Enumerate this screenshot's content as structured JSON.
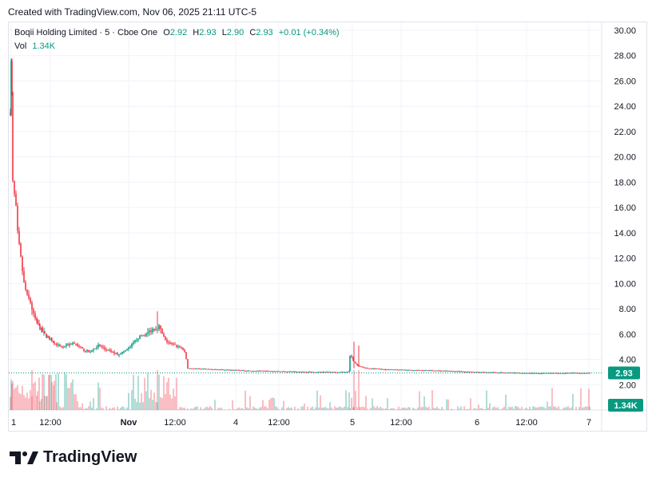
{
  "header": {
    "created_text": "Created with TradingView.com, Nov 06, 2025 21:11 UTC-5"
  },
  "legend": {
    "symbol": "Boqii Holding Limited · 5 · Cboe One",
    "open_label": "O",
    "open": "2.92",
    "high_label": "H",
    "high": "2.93",
    "low_label": "L",
    "low": "2.90",
    "close_label": "C",
    "close": "2.93",
    "change": "+0.01 (+0.34%)",
    "vol_label": "Vol",
    "vol": "1.34K"
  },
  "brand": {
    "name": "TradingView"
  },
  "colors": {
    "up": "#089981",
    "down": "#f23645",
    "grid": "#f0f3fa",
    "text": "#131722",
    "last_price": "#089981"
  },
  "chart_data": {
    "type": "candlestick",
    "title": "Boqii Holding Limited · 5 · Cboe One",
    "ylim": [
      0,
      30
    ],
    "y_ticks": [
      "30.00",
      "28.00",
      "26.00",
      "24.00",
      "22.00",
      "20.00",
      "18.00",
      "16.00",
      "14.00",
      "12.00",
      "10.00",
      "8.00",
      "6.00",
      "4.00",
      "2.00"
    ],
    "x_ticks": [
      "1",
      "12:00",
      "Nov",
      "12:00",
      "4",
      "12:00",
      "5",
      "12:00",
      "6",
      "12:00",
      "7"
    ],
    "last_price_label": "2.93",
    "last_price": 2.93,
    "volume_label": "1.34K",
    "grid": true,
    "segments": [
      {
        "name": "day-1",
        "points": [
          [
            0,
            23.5
          ],
          [
            1,
            27.5
          ],
          [
            2,
            25
          ],
          [
            3,
            18
          ],
          [
            5,
            17
          ],
          [
            7,
            16
          ],
          [
            9,
            14
          ],
          [
            11,
            13
          ],
          [
            13,
            12
          ],
          [
            15,
            11
          ],
          [
            17,
            10
          ],
          [
            19,
            9.5
          ],
          [
            21,
            9
          ],
          [
            23,
            8.8
          ],
          [
            25,
            8.5
          ],
          [
            27,
            8
          ],
          [
            29,
            7.5
          ],
          [
            31,
            7.2
          ],
          [
            34,
            6.8
          ],
          [
            37,
            6.5
          ],
          [
            40,
            6.2
          ],
          [
            43,
            6
          ],
          [
            46,
            5.8
          ],
          [
            49,
            5.6
          ],
          [
            52,
            5.5
          ],
          [
            55,
            5.3
          ],
          [
            58,
            5.2
          ],
          [
            62,
            5
          ],
          [
            66,
            5
          ],
          [
            70,
            5.1
          ],
          [
            74,
            5.2
          ],
          [
            78,
            5.3
          ],
          [
            82,
            5.2
          ],
          [
            86,
            5
          ],
          [
            90,
            4.8
          ],
          [
            94,
            4.7
          ],
          [
            98,
            4.6
          ],
          [
            102,
            4.7
          ],
          [
            106,
            4.9
          ],
          [
            110,
            5.1
          ],
          [
            114,
            5
          ],
          [
            118,
            4.8
          ],
          [
            122,
            4.7
          ],
          [
            126,
            4.6
          ],
          [
            130,
            4.5
          ],
          [
            134,
            4.4
          ],
          [
            138,
            4.5
          ],
          [
            142,
            4.6
          ],
          [
            146,
            4.8
          ],
          [
            150,
            5
          ],
          [
            154,
            5.3
          ],
          [
            158,
            5.6
          ],
          [
            162,
            5.8
          ],
          [
            166,
            5.9
          ],
          [
            170,
            6
          ],
          [
            174,
            6.2
          ],
          [
            178,
            6.4
          ],
          [
            182,
            6.5
          ],
          [
            186,
            6.6
          ],
          [
            190,
            6
          ],
          [
            194,
            5.5
          ],
          [
            198,
            5.3
          ],
          [
            202,
            5.2
          ],
          [
            206,
            5.1
          ],
          [
            210,
            5
          ],
          [
            214,
            4.9
          ],
          [
            218,
            4.5
          ],
          [
            222,
            3.5
          ]
        ]
      },
      {
        "name": "day-2",
        "points": [
          [
            222,
            3.3
          ],
          [
            260,
            3.2
          ],
          [
            300,
            3.1
          ],
          [
            340,
            3.05
          ],
          [
            380,
            3.0
          ],
          [
            420,
            3.0
          ],
          [
            425,
            3.1
          ]
        ]
      },
      {
        "name": "day-3",
        "points": [
          [
            425,
            4.3
          ],
          [
            430,
            3.8
          ],
          [
            435,
            3.5
          ],
          [
            445,
            3.3
          ],
          [
            470,
            3.2
          ],
          [
            500,
            3.15
          ],
          [
            540,
            3.1
          ],
          [
            580,
            3.0
          ]
        ]
      },
      {
        "name": "day-4",
        "points": [
          [
            580,
            3.0
          ],
          [
            620,
            2.95
          ],
          [
            660,
            2.9
          ],
          [
            700,
            2.92
          ],
          [
            725,
            2.93
          ]
        ]
      }
    ],
    "spikes": [
      {
        "x": 27,
        "high": 8.6,
        "low": 7.5
      },
      {
        "x": 184,
        "high": 7.8,
        "low": 6.2
      },
      {
        "x": 430,
        "high": 5.4,
        "low": 3.3
      },
      {
        "x": 436,
        "high": 5.1,
        "low": 3.4
      }
    ]
  }
}
